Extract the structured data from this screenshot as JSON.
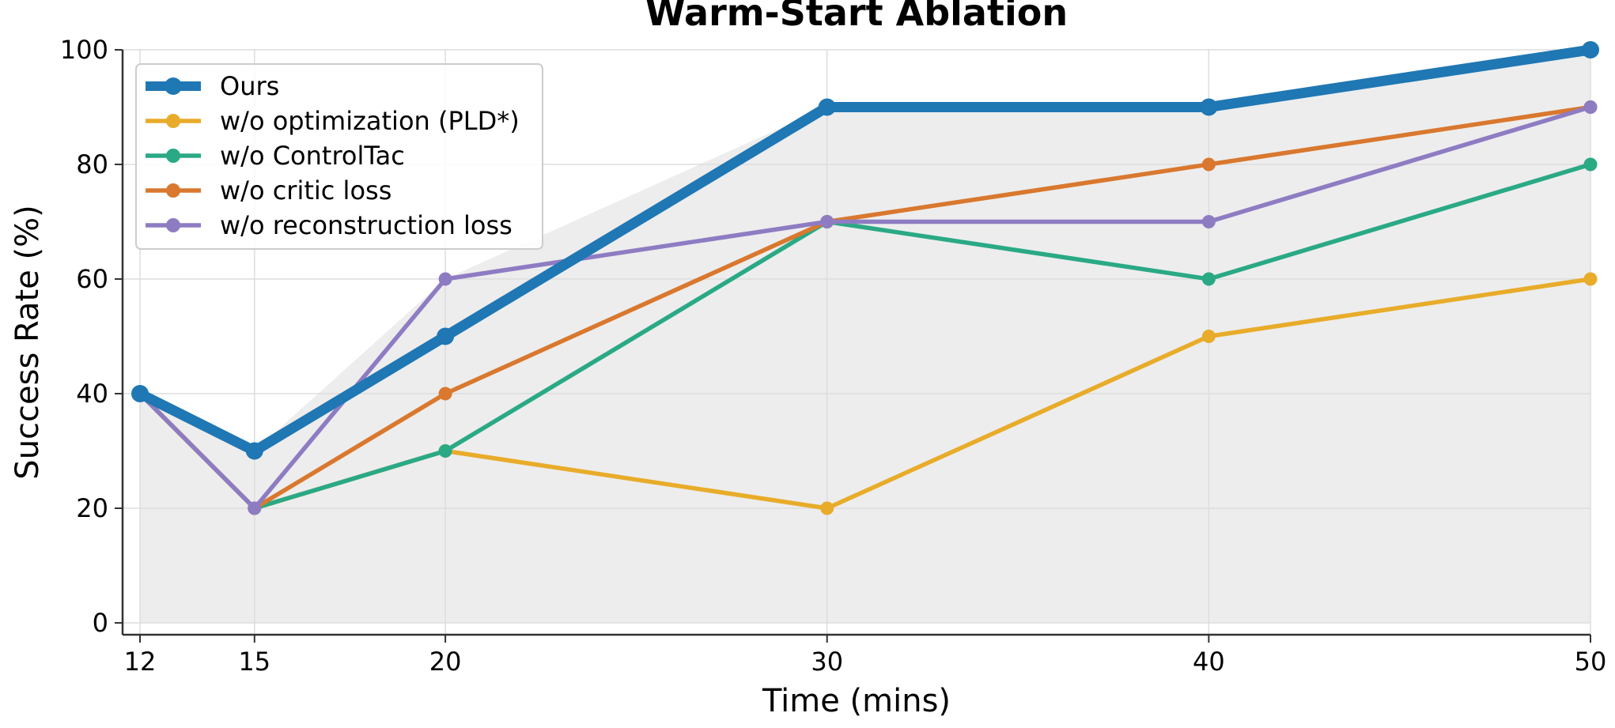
{
  "chart_data": {
    "type": "line",
    "title": "Warm-Start Ablation",
    "xlabel": "Time (mins)",
    "ylabel": "Success Rate (%)",
    "x": [
      12,
      15,
      20,
      30,
      40,
      50
    ],
    "xticks": [
      "12",
      "15",
      "20",
      "30",
      "40",
      "50"
    ],
    "yticks": [
      "0",
      "20",
      "40",
      "60",
      "80",
      "100"
    ],
    "xlim": [
      12,
      50
    ],
    "ylim": [
      0,
      100
    ],
    "grid": true,
    "legend_position": "top-left",
    "shaded_region": {
      "color": "#ededed",
      "between_y": [
        0,
        "max"
      ]
    },
    "series": [
      {
        "name": "Ours",
        "values": [
          40,
          30,
          50,
          90,
          90,
          100
        ],
        "color": "#1f77b4",
        "emphasis": true
      },
      {
        "name": "w/o optimization (PLD*)",
        "values": [
          40,
          20,
          30,
          20,
          50,
          60
        ],
        "color": "#e8ac2a"
      },
      {
        "name": "w/o ControlTac",
        "values": [
          40,
          20,
          30,
          70,
          60,
          80
        ],
        "color": "#2aa985"
      },
      {
        "name": "w/o critic loss",
        "values": [
          40,
          20,
          40,
          70,
          80,
          90
        ],
        "color": "#d9782e"
      },
      {
        "name": "w/o reconstruction loss",
        "values": [
          40,
          20,
          60,
          70,
          70,
          90
        ],
        "color": "#8e7cc3"
      }
    ]
  }
}
